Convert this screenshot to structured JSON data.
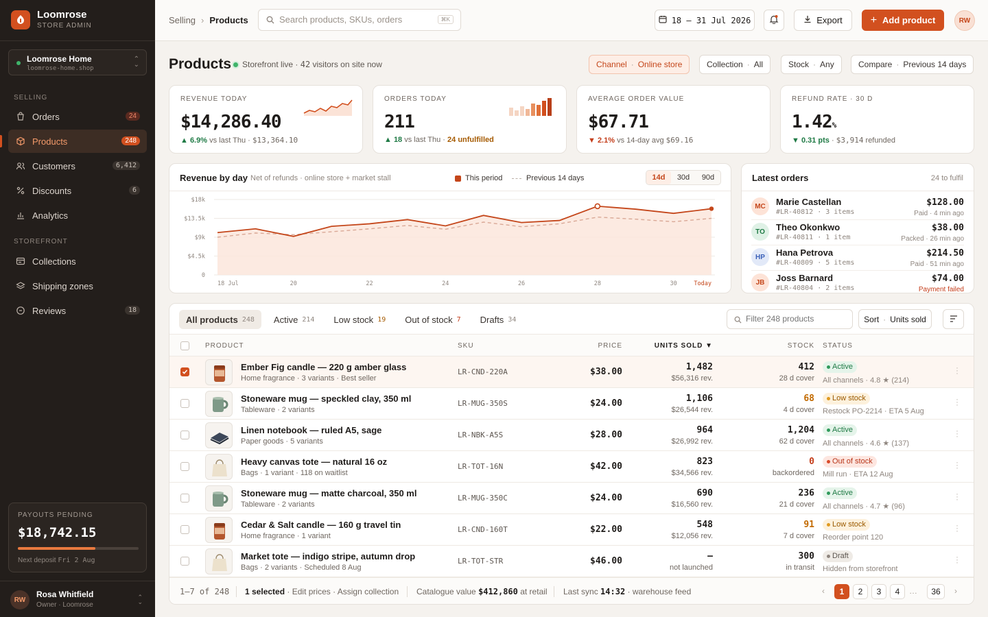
{
  "brand": {
    "name": "Loomrose",
    "subtitle": "STORE ADMIN"
  },
  "store": {
    "name": "Loomrose Home",
    "url": "loomrose-home.shop"
  },
  "sidebar": {
    "selling_label": "SELLING",
    "storefront_label": "STOREFRONT",
    "selling": [
      {
        "label": "Orders",
        "count": "24",
        "icon": "orders-icon"
      },
      {
        "label": "Products",
        "count": "248",
        "icon": "box-icon"
      },
      {
        "label": "Customers",
        "count": "6,412",
        "icon": "users-icon"
      },
      {
        "label": "Discounts",
        "count": "6",
        "icon": "percent-icon"
      },
      {
        "label": "Analytics",
        "count": "",
        "icon": "bar-chart-icon"
      }
    ],
    "storefront": [
      {
        "label": "Collections",
        "count": "",
        "icon": "collection-icon"
      },
      {
        "label": "Shipping zones",
        "count": "",
        "icon": "layers-icon"
      },
      {
        "label": "Reviews",
        "count": "18",
        "icon": "comment-icon"
      }
    ]
  },
  "payouts": {
    "label": "PAYOUTS PENDING",
    "amount": "$18,742.15",
    "progress": 0.64,
    "next_label": "Next deposit",
    "next_date": "Fri 2 Aug"
  },
  "user": {
    "name": "Rosa Whitfield",
    "role": "Owner · Loomrose",
    "initials": "RW"
  },
  "topbar": {
    "crumb_parent": "Selling",
    "crumb_current": "Products",
    "search_placeholder": "Search products, SKUs, orders",
    "search_kbd": "⌘K",
    "date_range": "18 – 31 Jul 2026",
    "export_label": "Export",
    "add_label": "Add product",
    "initials": "RW"
  },
  "page": {
    "title": "Products",
    "live_text": "Storefront live ·",
    "visitors": "42",
    "visitors_text": "visitors on site now"
  },
  "filters": [
    {
      "key": "Channel",
      "value": "Online store"
    },
    {
      "key": "Collection",
      "value": "All"
    },
    {
      "key": "Stock",
      "value": "Any"
    },
    {
      "key": "Compare",
      "value": "Previous 14 days"
    }
  ],
  "kpis": [
    {
      "label": "REVENUE TODAY",
      "value": "$14,286.40",
      "delta": "▲ 6.9%",
      "delta_text": "vs last Thu ·",
      "extra": "$13,364.10"
    },
    {
      "label": "ORDERS TODAY",
      "value": "211",
      "delta": "▲ 18",
      "delta_text": "vs last Thu ·",
      "extra": "24 unfulfilled"
    },
    {
      "label": "AVERAGE ORDER VALUE",
      "value": "$67.71",
      "delta": "▼ 2.1%",
      "delta_text": "vs 14-day avg",
      "extra": "$69.16"
    },
    {
      "label": "REFUND RATE · 30 D",
      "value": "1.42",
      "unit": "%",
      "delta": "▼ 0.31 pts",
      "delta_text": "·",
      "extra": "$3,914",
      "extra2": "refunded"
    }
  ],
  "chart_data": {
    "type": "line",
    "title": "Revenue by day",
    "subtitle": "Net of refunds · online store + market stall",
    "x": [
      "18 Jul",
      "19",
      "20",
      "21",
      "22",
      "23",
      "24",
      "25",
      "26",
      "27",
      "28",
      "29",
      "30",
      "Today"
    ],
    "x_tick_labels": [
      "18 Jul",
      "20",
      "22",
      "24",
      "26",
      "28",
      "30",
      "Today"
    ],
    "series": [
      {
        "name": "This period",
        "values": [
          10100,
          11000,
          9200,
          11600,
          12200,
          13200,
          11700,
          14200,
          12500,
          13000,
          16400,
          15700,
          14700,
          15800
        ]
      },
      {
        "name": "Previous 14 days",
        "values": [
          9000,
          10000,
          9600,
          10300,
          11000,
          11800,
          10900,
          12600,
          11500,
          12200,
          13800,
          13300,
          12700,
          13500
        ]
      }
    ],
    "y_tick_labels": [
      "$18k",
      "$13.5k",
      "$9k",
      "$4.5k",
      "0"
    ],
    "ylim": [
      0,
      18000
    ],
    "ranges": [
      "14d",
      "30d",
      "90d"
    ],
    "selected_range": "14d",
    "grid": true,
    "legend_position": "top-right"
  },
  "latest_orders": {
    "title": "Latest orders",
    "subtitle": "24 to fulfil",
    "items": [
      {
        "initials": "MC",
        "name": "Marie Castellan",
        "id": "#LR-40812",
        "items": "3 items",
        "amount": "$128.00",
        "status": "Paid · 4 min ago",
        "bg": "#fde3d7",
        "fg": "#c4461a",
        "fail": false
      },
      {
        "initials": "TO",
        "name": "Theo Okonkwo",
        "id": "#LR-40811",
        "items": "1 item",
        "amount": "$38.00",
        "status": "Packed · 26 min ago",
        "bg": "#dff1e6",
        "fg": "#1f7a45",
        "fail": false
      },
      {
        "initials": "HP",
        "name": "Hana Petrova",
        "id": "#LR-40809",
        "items": "5 items",
        "amount": "$214.50",
        "status": "Paid · 51 min ago",
        "bg": "#e2e9f8",
        "fg": "#3a5fb8",
        "fail": false
      },
      {
        "initials": "JB",
        "name": "Joss Barnard",
        "id": "#LR-40804",
        "items": "2 items",
        "amount": "$74.00",
        "status": "Payment failed",
        "bg": "#fde3d7",
        "fg": "#c4461a",
        "fail": true
      }
    ]
  },
  "table": {
    "tabs": [
      {
        "label": "All products",
        "count": "248"
      },
      {
        "label": "Active",
        "count": "214"
      },
      {
        "label": "Low stock",
        "count": "19"
      },
      {
        "label": "Out of stock",
        "count": "7"
      },
      {
        "label": "Drafts",
        "count": "34"
      }
    ],
    "filter_placeholder": "Filter 248 products",
    "sort_key": "Sort",
    "sort_value": "Units sold",
    "headers": {
      "product": "PRODUCT",
      "sku": "SKU",
      "price": "PRICE",
      "units": "UNITS SOLD ▼",
      "stock": "STOCK",
      "status": "STATUS"
    },
    "rows": [
      {
        "name": "Ember Fig candle — 220 g amber glass",
        "meta": "Home fragrance · 3 variants · Best seller",
        "sku": "LR-CND-220A",
        "price": "$38.00",
        "units": "1,482",
        "rev": "$56,316 rev.",
        "stock": "412",
        "cover": "28 d cover",
        "status": "Active",
        "status_type": "active",
        "status_detail": "All channels · 4.8 ★ (214)",
        "selected": true,
        "thumb": "candle-amber"
      },
      {
        "name": "Stoneware mug — speckled clay, 350 ml",
        "meta": "Tableware · 2 variants",
        "sku": "LR-MUG-350S",
        "price": "$24.00",
        "units": "1,106",
        "rev": "$26,544 rev.",
        "stock": "68",
        "cover": "4 d cover",
        "status": "Low stock",
        "status_type": "low",
        "status_detail": "Restock PO-2214 · ETA 5 Aug",
        "selected": false,
        "thumb": "mug-sage"
      },
      {
        "name": "Linen notebook — ruled A5, sage",
        "meta": "Paper goods · 5 variants",
        "sku": "LR-NBK-A5S",
        "price": "$28.00",
        "units": "964",
        "rev": "$26,992 rev.",
        "stock": "1,204",
        "cover": "62 d cover",
        "status": "Active",
        "status_type": "active",
        "status_detail": "All channels · 4.6 ★ (137)",
        "selected": false,
        "thumb": "notebook"
      },
      {
        "name": "Heavy canvas tote — natural 16 oz",
        "meta": "Bags · 1 variant · 118 on waitlist",
        "sku": "LR-TOT-16N",
        "price": "$42.00",
        "units": "823",
        "rev": "$34,566 rev.",
        "stock": "0",
        "cover": "backordered",
        "status": "Out of stock",
        "status_type": "out",
        "status_detail": "Mill run · ETA 12 Aug",
        "selected": false,
        "thumb": "tote"
      },
      {
        "name": "Stoneware mug — matte charcoal, 350 ml",
        "meta": "Tableware · 2 variants",
        "sku": "LR-MUG-350C",
        "price": "$24.00",
        "units": "690",
        "rev": "$16,560 rev.",
        "stock": "236",
        "cover": "21 d cover",
        "status": "Active",
        "status_type": "active",
        "status_detail": "All channels · 4.7 ★ (96)",
        "selected": false,
        "thumb": "mug-sage"
      },
      {
        "name": "Cedar & Salt candle — 160 g travel tin",
        "meta": "Home fragrance · 1 variant",
        "sku": "LR-CND-160T",
        "price": "$22.00",
        "units": "548",
        "rev": "$12,056 rev.",
        "stock": "91",
        "cover": "7 d cover",
        "status": "Low stock",
        "status_type": "low",
        "status_detail": "Reorder point 120",
        "selected": false,
        "thumb": "candle-amber"
      },
      {
        "name": "Market tote — indigo stripe, autumn drop",
        "meta": "Bags · 2 variants · Scheduled 8 Aug",
        "sku": "LR-TOT-STR",
        "price": "$46.00",
        "units": "—",
        "rev": "not launched",
        "stock": "300",
        "cover": "in transit",
        "status": "Draft",
        "status_type": "draft",
        "status_detail": "Hidden from storefront",
        "selected": false,
        "thumb": "tote"
      }
    ],
    "footer": {
      "range": "1–7 of 248",
      "selected": "1 selected",
      "actions": "· Edit prices · Assign collection",
      "catalogue_label": "Catalogue value",
      "catalogue_value": "$412,860",
      "catalogue_suffix": "at retail",
      "sync_label": "Last sync",
      "sync_time": "14:32",
      "sync_suffix": "· warehouse feed"
    },
    "pages": [
      "1",
      "2",
      "3",
      "4",
      "…",
      "36"
    ]
  },
  "colors": {
    "accent": "#d2501f",
    "sidebar": "#231e1b",
    "background": "#f5f2ee"
  }
}
